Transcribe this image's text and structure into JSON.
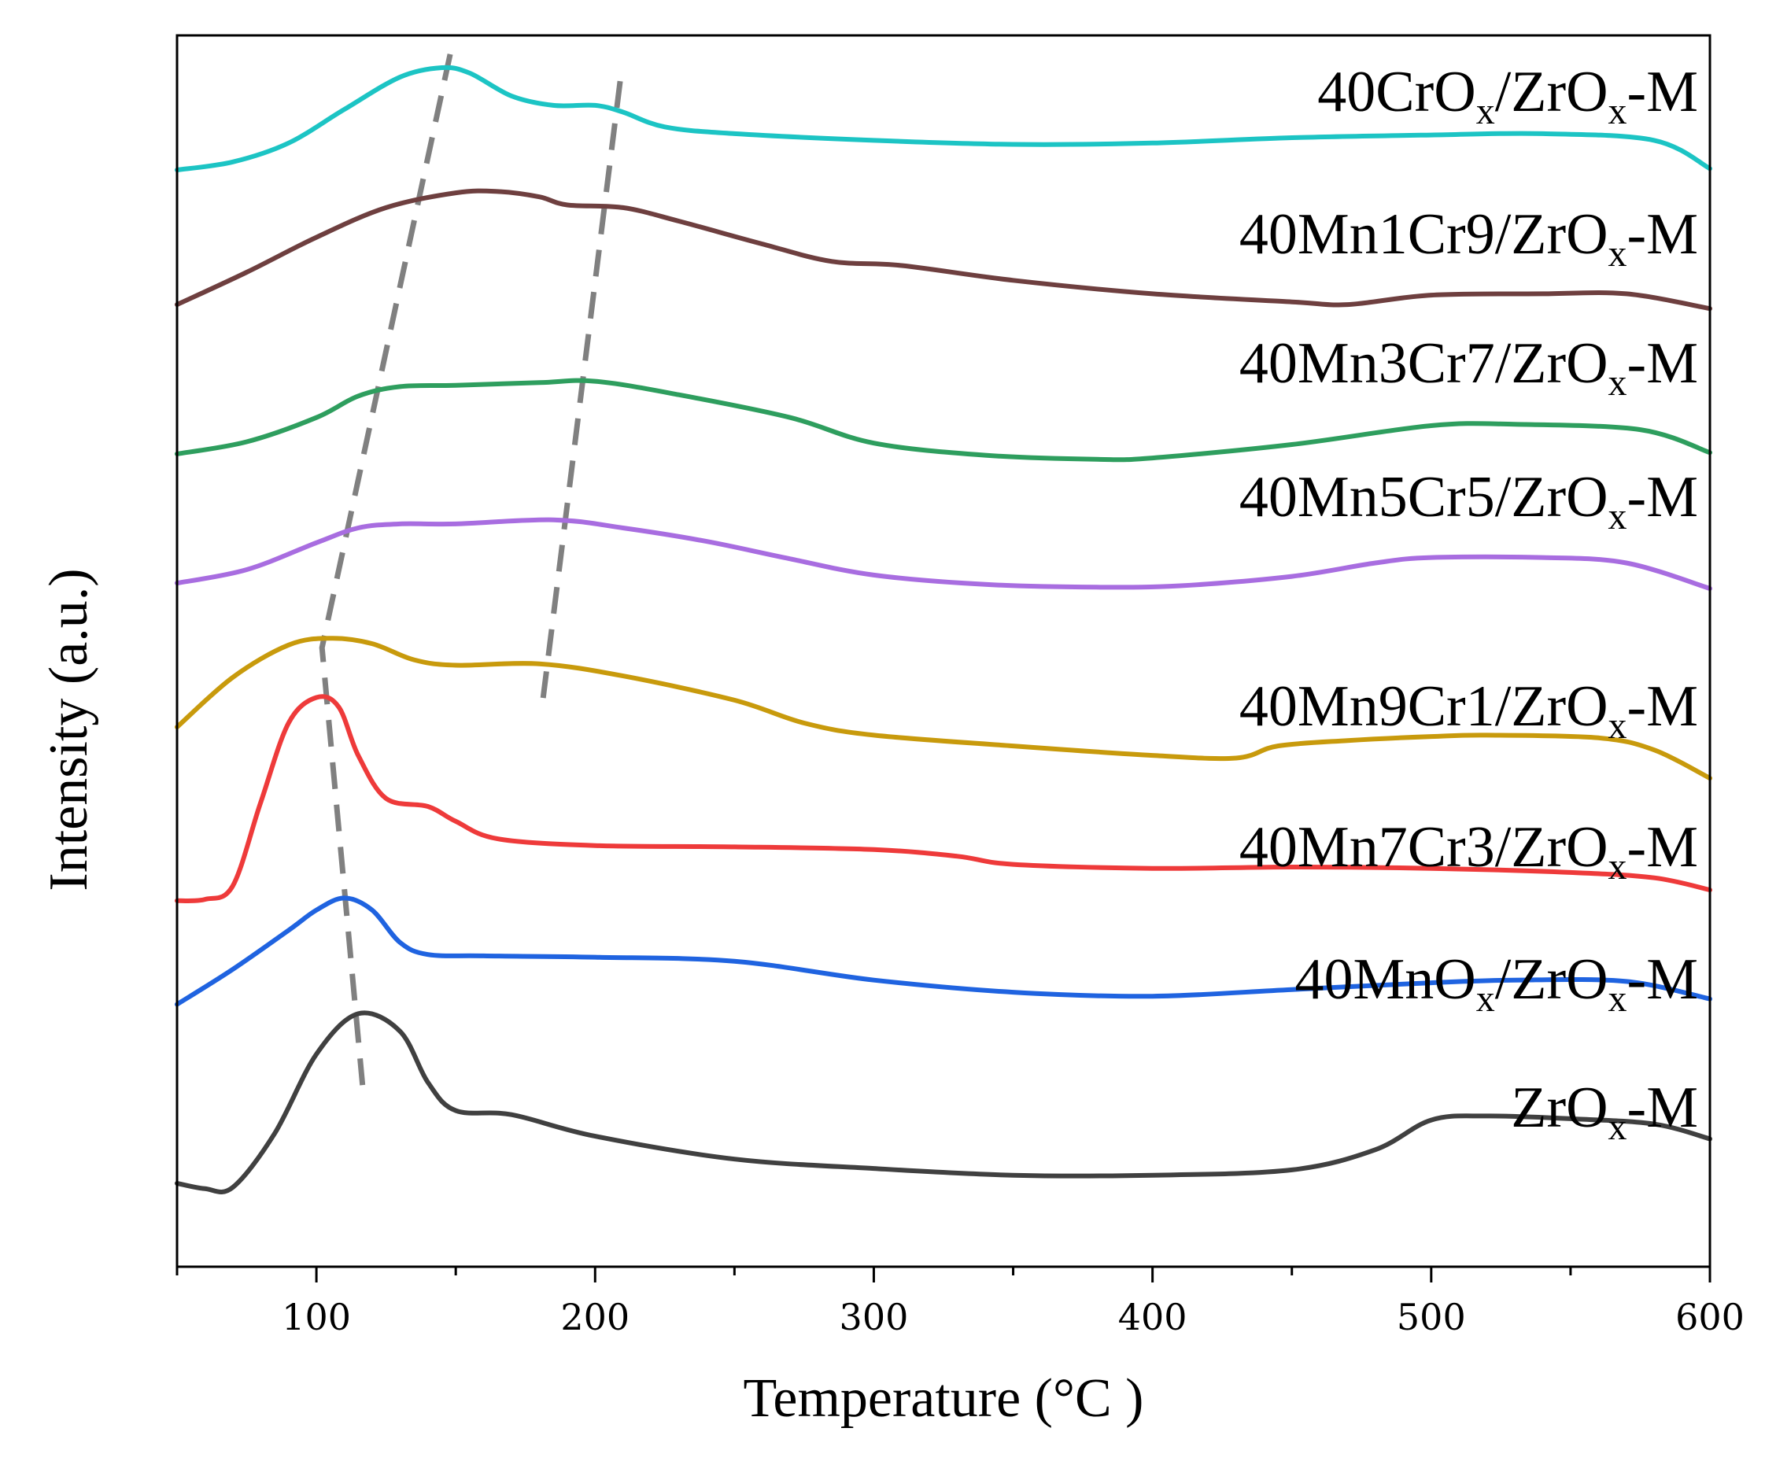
{
  "chart_data": {
    "type": "line",
    "xlabel": "Temperature (°C )",
    "ylabel": "Intensity (a.u.)",
    "xlim": [
      50,
      600
    ],
    "xticks": [
      100,
      200,
      300,
      400,
      500,
      600
    ],
    "yticks_visible": false,
    "guide_lines": [
      {
        "name": "guide-line-low-temp",
        "style": "dashed",
        "color": "#808080",
        "points": [
          [
            148,
            8.76
          ],
          [
            102,
            4.35
          ],
          [
            117,
            1.0
          ]
        ]
      },
      {
        "name": "guide-line-high-temp",
        "style": "dashed",
        "color": "#808080",
        "points": [
          [
            209,
            8.56
          ],
          [
            181,
            3.92
          ]
        ]
      }
    ],
    "series": [
      {
        "name": "40CrOx/ZrOx-M",
        "label_main": "40CrO",
        "label_sub1": "x",
        "label_mid": "/ZrO",
        "label_sub2": "x",
        "label_end": "-M",
        "color": "#1cc4c4",
        "x": [
          50,
          70,
          90,
          110,
          130,
          145,
          155,
          170,
          185,
          200,
          210,
          225,
          250,
          300,
          350,
          400,
          450,
          500,
          540,
          580,
          600
        ],
        "y": [
          7.9,
          7.96,
          8.1,
          8.35,
          8.59,
          8.66,
          8.62,
          8.45,
          8.38,
          8.38,
          8.33,
          8.22,
          8.17,
          8.12,
          8.09,
          8.1,
          8.14,
          8.16,
          8.17,
          8.12,
          7.91
        ]
      },
      {
        "name": "40Mn1Cr9/ZrOx-M",
        "label_main": "40Mn1Cr9/ZrO",
        "label_sub1": "",
        "label_mid": "",
        "label_sub2": "x",
        "label_end": "-M",
        "color": "#6e3f3f",
        "x": [
          50,
          75,
          100,
          125,
          150,
          165,
          180,
          190,
          210,
          230,
          260,
          285,
          310,
          350,
          400,
          450,
          470,
          500,
          540,
          570,
          600
        ],
        "y": [
          6.9,
          7.14,
          7.4,
          7.62,
          7.73,
          7.74,
          7.7,
          7.64,
          7.62,
          7.52,
          7.35,
          7.22,
          7.19,
          7.08,
          6.98,
          6.92,
          6.9,
          6.97,
          6.98,
          6.98,
          6.87
        ]
      },
      {
        "name": "40Mn3Cr7/ZrOx-M",
        "label_main": "40Mn3Cr7/ZrO",
        "label_sub1": "",
        "label_mid": "",
        "label_sub2": "x",
        "label_end": "-M",
        "color": "#2e9e5e",
        "x": [
          50,
          75,
          100,
          115,
          130,
          150,
          180,
          200,
          230,
          270,
          300,
          340,
          380,
          400,
          450,
          500,
          530,
          575,
          600
        ],
        "y": [
          5.79,
          5.88,
          6.06,
          6.22,
          6.29,
          6.3,
          6.32,
          6.33,
          6.23,
          6.06,
          5.87,
          5.78,
          5.75,
          5.76,
          5.86,
          6.0,
          6.01,
          5.97,
          5.8
        ]
      },
      {
        "name": "40Mn5Cr5/ZrOx-M",
        "label_main": "40Mn5Cr5/ZrO",
        "label_sub1": "",
        "label_mid": "",
        "label_sub2": "x",
        "label_end": "-M",
        "color": "#a86de0",
        "x": [
          50,
          75,
          100,
          115,
          130,
          150,
          185,
          210,
          240,
          270,
          300,
          340,
          380,
          410,
          450,
          480,
          500,
          540,
          570,
          600
        ],
        "y": [
          4.83,
          4.93,
          5.13,
          5.24,
          5.27,
          5.27,
          5.3,
          5.24,
          5.14,
          5.01,
          4.89,
          4.82,
          4.8,
          4.81,
          4.88,
          4.98,
          5.02,
          5.02,
          4.98,
          4.79
        ]
      },
      {
        "name": "40Mn9Cr1/ZrOx-M",
        "label_main": "40Mn9Cr1/ZrO",
        "label_sub1": "",
        "label_mid": "",
        "label_sub2": "x",
        "label_end": "-M",
        "color": "#c89a0c",
        "x": [
          50,
          70,
          90,
          105,
          120,
          135,
          150,
          180,
          210,
          250,
          275,
          300,
          350,
          400,
          430,
          445,
          470,
          500,
          520,
          560,
          580,
          600
        ],
        "y": [
          3.76,
          4.13,
          4.37,
          4.42,
          4.38,
          4.26,
          4.22,
          4.23,
          4.14,
          3.96,
          3.79,
          3.7,
          3.62,
          3.55,
          3.53,
          3.62,
          3.66,
          3.69,
          3.7,
          3.68,
          3.59,
          3.38
        ]
      },
      {
        "name": "40Mn7Cr3/ZrOx-M",
        "label_main": "40Mn7Cr3/ZrO",
        "label_sub1": "",
        "label_mid": "",
        "label_sub2": "x",
        "label_end": "-M",
        "color": "#ee3a3a",
        "x": [
          50,
          60,
          70,
          80,
          90,
          100,
          108,
          115,
          125,
          140,
          150,
          165,
          200,
          250,
          300,
          330,
          350,
          400,
          450,
          500,
          550,
          580,
          600
        ],
        "y": [
          2.47,
          2.48,
          2.58,
          3.2,
          3.79,
          3.98,
          3.91,
          3.55,
          3.23,
          3.17,
          3.06,
          2.93,
          2.88,
          2.87,
          2.85,
          2.8,
          2.74,
          2.71,
          2.72,
          2.71,
          2.68,
          2.64,
          2.55
        ]
      },
      {
        "name": "40MnOx/ZrOx-M",
        "label_main": "40MnO",
        "label_sub1": "x",
        "label_mid": "/ZrO",
        "label_sub2": "x",
        "label_end": "-M",
        "color": "#1f63e0",
        "x": [
          50,
          70,
          90,
          100,
          110,
          120,
          130,
          140,
          160,
          200,
          250,
          300,
          350,
          400,
          450,
          500,
          530,
          570,
          600
        ],
        "y": [
          1.7,
          1.96,
          2.25,
          2.4,
          2.49,
          2.4,
          2.16,
          2.07,
          2.06,
          2.05,
          2.02,
          1.88,
          1.79,
          1.76,
          1.81,
          1.86,
          1.88,
          1.87,
          1.74
        ]
      },
      {
        "name": "ZrOx-M",
        "label_main": "ZrO",
        "label_sub1": "x",
        "label_mid": "-M",
        "label_sub2": "",
        "label_end": "",
        "color": "#404040",
        "x": [
          50,
          60,
          70,
          85,
          100,
          115,
          130,
          140,
          150,
          170,
          200,
          250,
          300,
          350,
          400,
          450,
          480,
          500,
          520,
          550,
          580,
          600
        ],
        "y": [
          0.37,
          0.33,
          0.34,
          0.74,
          1.33,
          1.63,
          1.5,
          1.12,
          0.91,
          0.88,
          0.72,
          0.55,
          0.48,
          0.43,
          0.43,
          0.47,
          0.62,
          0.84,
          0.87,
          0.85,
          0.81,
          0.7
        ]
      }
    ]
  }
}
